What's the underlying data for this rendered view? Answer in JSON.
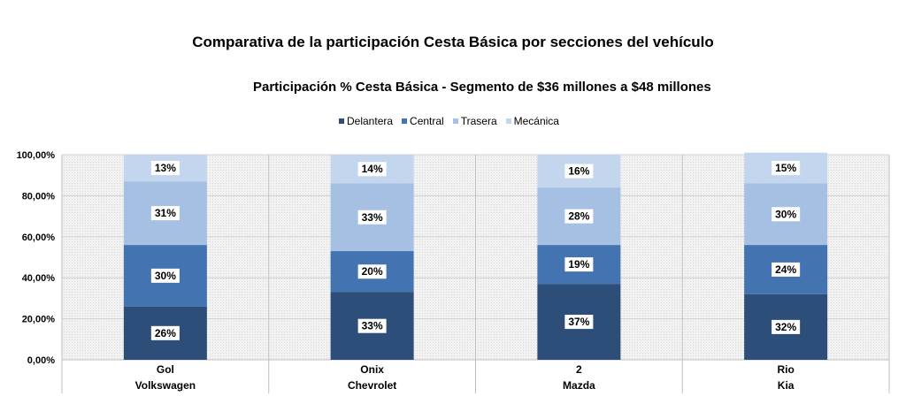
{
  "title": "Comparativa de la participación Cesta Básica por secciones del vehículo",
  "subtitle": "Participación % Cesta Básica - Segmento de $36 millones a $48 millones",
  "chart_data": {
    "type": "bar",
    "stacked": true,
    "categories": [
      {
        "model": "Gol",
        "brand": "Volkswagen"
      },
      {
        "model": "Onix",
        "brand": "Chevrolet"
      },
      {
        "model": "2",
        "brand": "Mazda"
      },
      {
        "model": "Rio",
        "brand": "Kia"
      }
    ],
    "series": [
      {
        "name": "Delantera",
        "color": "#2c4e78",
        "values": [
          26,
          33,
          37,
          32
        ]
      },
      {
        "name": "Central",
        "color": "#4473b2",
        "values": [
          30,
          20,
          19,
          24
        ]
      },
      {
        "name": "Trasera",
        "color": "#a6c0e3",
        "values": [
          31,
          33,
          28,
          30
        ]
      },
      {
        "name": "Mecánica",
        "color": "#c3d6ee",
        "values": [
          13,
          14,
          16,
          15
        ]
      }
    ],
    "data_labels": [
      [
        "26%",
        "30%",
        "31%",
        "13%"
      ],
      [
        "33%",
        "20%",
        "33%",
        "14%"
      ],
      [
        "37%",
        "19%",
        "28%",
        "16%"
      ],
      [
        "32%",
        "24%",
        "30%",
        "15%"
      ]
    ],
    "yticks": [
      "0,00%",
      "20,00%",
      "40,00%",
      "60,00%",
      "80,00%",
      "100,00%"
    ],
    "ylim": [
      0,
      100
    ],
    "legend_position": "top"
  }
}
